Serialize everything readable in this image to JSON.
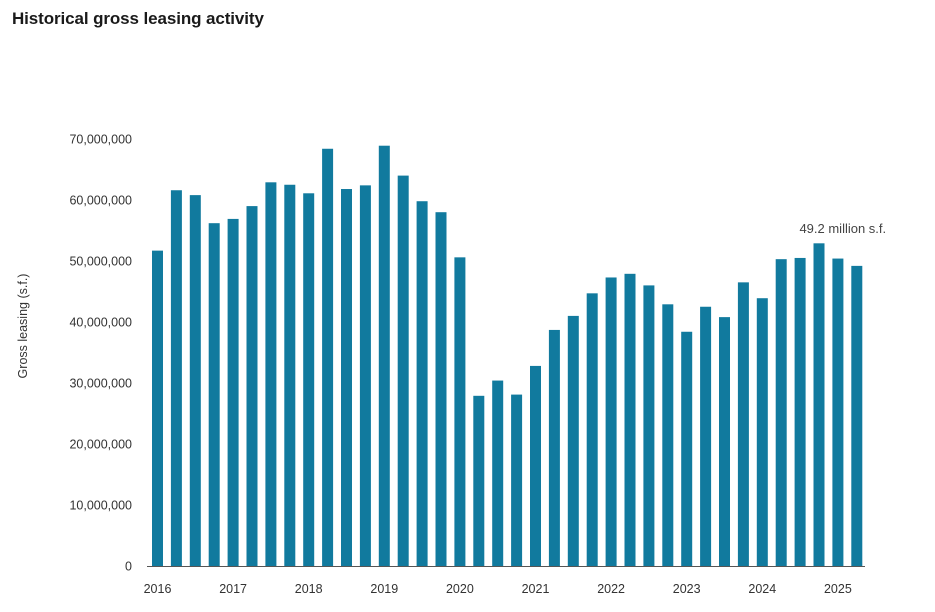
{
  "chart_data": {
    "type": "bar",
    "title": "Historical gross leasing activity",
    "ylabel": "Gross leasing (s.f.)",
    "xlabel": "",
    "ylim": [
      0,
      70000000
    ],
    "yticks": [
      "0",
      "10,000,000",
      "20,000,000",
      "30,000,000",
      "40,000,000",
      "50,000,000",
      "60,000,000",
      "70,000,000"
    ],
    "ytick_values": [
      0,
      10000000,
      20000000,
      30000000,
      40000000,
      50000000,
      60000000,
      70000000
    ],
    "xticks": [
      "2016",
      "2017",
      "2018",
      "2019",
      "2020",
      "2021",
      "2022",
      "2023",
      "2024",
      "2025"
    ],
    "grid": false,
    "bar_color": "#117a9e",
    "categories": [
      "2016 Q1",
      "2016 Q2",
      "2016 Q3",
      "2016 Q4",
      "2017 Q1",
      "2017 Q2",
      "2017 Q3",
      "2017 Q4",
      "2018 Q1",
      "2018 Q2",
      "2018 Q3",
      "2018 Q4",
      "2019 Q1",
      "2019 Q2",
      "2019 Q3",
      "2019 Q4",
      "2020 Q1",
      "2020 Q2",
      "2020 Q3",
      "2020 Q4",
      "2021 Q1",
      "2021 Q2",
      "2021 Q3",
      "2021 Q4",
      "2022 Q1",
      "2022 Q2",
      "2022 Q3",
      "2022 Q4",
      "2023 Q1",
      "2023 Q2",
      "2023 Q3",
      "2023 Q4",
      "2024 Q1",
      "2024 Q2",
      "2024 Q3",
      "2024 Q4",
      "2025 Q1",
      "2025 Q2"
    ],
    "values": [
      51700000,
      61600000,
      60800000,
      56200000,
      56900000,
      59000000,
      62900000,
      62500000,
      61100000,
      68400000,
      61800000,
      62400000,
      68900000,
      64000000,
      59800000,
      58000000,
      50600000,
      27900000,
      30400000,
      28100000,
      32800000,
      38700000,
      41000000,
      44700000,
      47300000,
      47900000,
      46000000,
      42900000,
      38400000,
      42500000,
      40800000,
      46500000,
      43900000,
      50300000,
      50500000,
      52900000,
      50400000,
      49200000
    ],
    "annotation": {
      "text": "49.2 million s.f.",
      "target_index": 37
    }
  }
}
